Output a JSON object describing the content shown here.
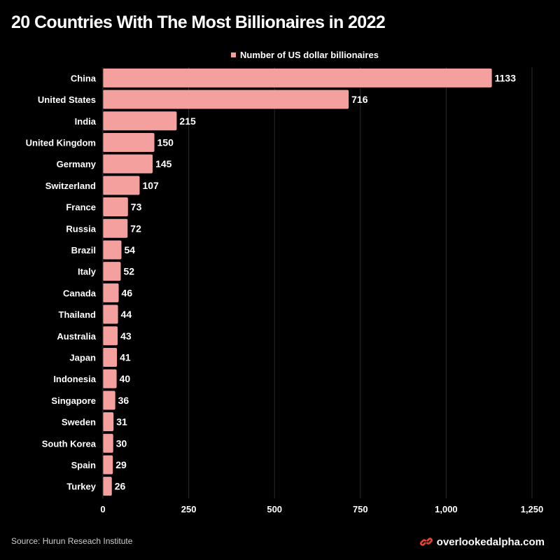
{
  "header": {
    "title": "20 Countries With The Most Billionaires in 2022"
  },
  "footer": {
    "source": "Source: Hurun Reseach Institute",
    "brand": "overlookedalpha.com",
    "brand_icon": "chain-link-icon",
    "brand_color": "#e8452c"
  },
  "chart_data": {
    "type": "bar",
    "orientation": "horizontal",
    "title": "20 Countries With The Most Billionaires in 2022",
    "xlabel": "",
    "ylabel": "",
    "categories": [
      "China",
      "United States",
      "India",
      "United Kingdom",
      "Germany",
      "Switzerland",
      "France",
      "Russia",
      "Brazil",
      "Italy",
      "Canada",
      "Thailand",
      "Australia",
      "Japan",
      "Indonesia",
      "Singapore",
      "Sweden",
      "South Korea",
      "Spain",
      "Turkey"
    ],
    "series": [
      {
        "name": "Number of US dollar billionaires",
        "color": "#f4a09e",
        "values": [
          1133,
          716,
          215,
          150,
          145,
          107,
          73,
          72,
          54,
          52,
          46,
          44,
          43,
          41,
          40,
          36,
          31,
          30,
          29,
          26
        ]
      }
    ],
    "xlim": [
      0,
      1250
    ],
    "xticks": [
      0,
      250,
      500,
      750,
      1000,
      1250
    ],
    "xtick_labels": [
      "0",
      "250",
      "500",
      "750",
      "1,000",
      "1,250"
    ],
    "grid": "vertical",
    "legend_position": "top-center",
    "data_labels": true
  }
}
